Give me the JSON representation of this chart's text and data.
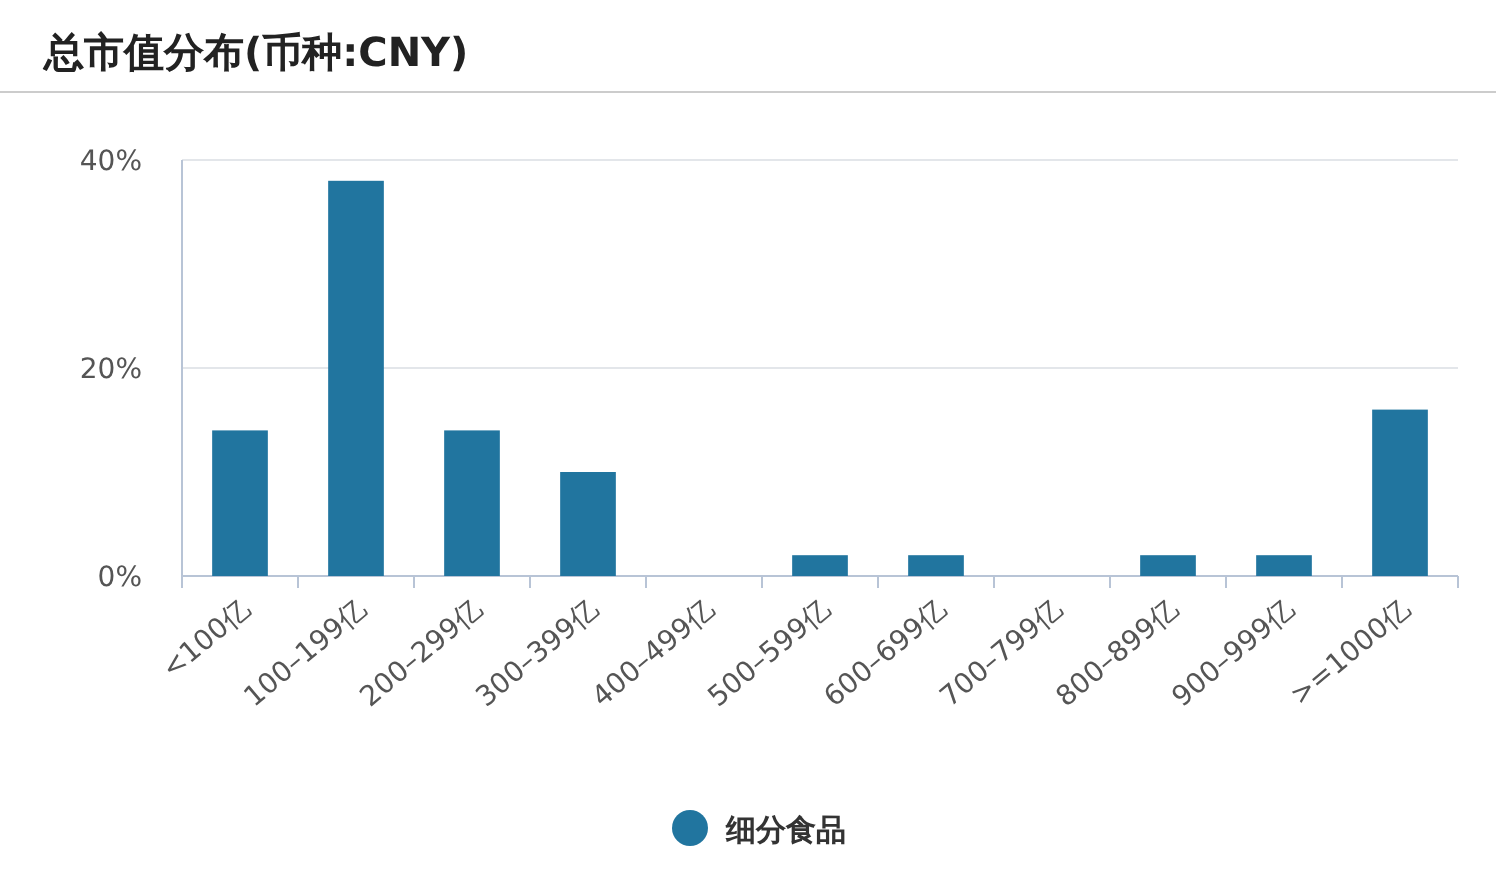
{
  "chart_data": {
    "type": "bar",
    "title": "总市值分布(币种:CNY)",
    "categories": [
      "<100亿",
      "100–199亿",
      "200–299亿",
      "300–399亿",
      "400–499亿",
      "500–599亿",
      "600–699亿",
      "700–799亿",
      "800–899亿",
      "900–999亿",
      ">=1000亿"
    ],
    "series": [
      {
        "name": "细分食品",
        "color": "#21759f",
        "values": [
          14,
          38,
          14,
          10,
          0,
          2,
          2,
          0,
          2,
          2,
          16
        ]
      }
    ],
    "ylim": [
      0,
      40
    ],
    "yticks": [
      {
        "value": 0,
        "label": "0%"
      },
      {
        "value": 20,
        "label": "20%"
      },
      {
        "value": 40,
        "label": "40%"
      }
    ],
    "grid": "y",
    "legend": "bottom"
  }
}
